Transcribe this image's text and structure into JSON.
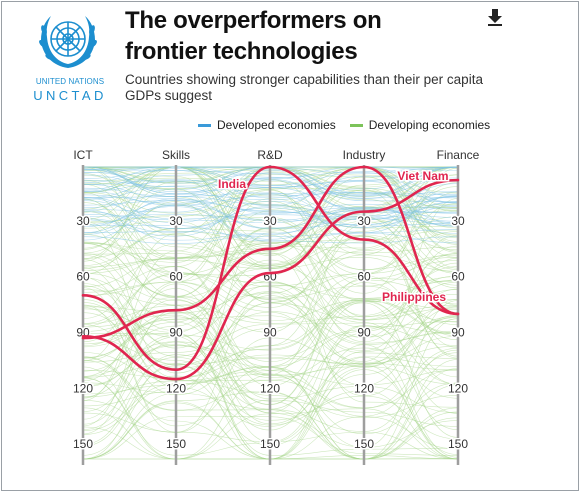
{
  "header": {
    "title": "The overperformers on frontier technologies",
    "subtitle": "Countries showing stronger capabilities than their per capita GDPs suggest"
  },
  "logo": {
    "line1": "UNITED NATIONS",
    "line2": "UNCTAD",
    "icon": "un-emblem-icon"
  },
  "toolbar": {
    "download_icon": "download-icon"
  },
  "colors": {
    "developed": "#7ec3e6",
    "developing": "#a6d68a",
    "highlight": "#e0264f",
    "axis": "#9e9e9e",
    "brand": "#1c8ecf"
  },
  "legend": {
    "items": [
      {
        "label": "Developed economies",
        "color": "#3a9ad9"
      },
      {
        "label": "Developing economies",
        "color": "#7cc35a"
      }
    ]
  },
  "chart_data": {
    "type": "parallel-coordinates",
    "title": "The overperformers on frontier technologies",
    "axes": [
      "ICT",
      "Skills",
      "R&D",
      "Industry",
      "Finance"
    ],
    "scale": {
      "min": 1,
      "max": 158,
      "inverted": true
    },
    "ticks": [
      30,
      60,
      90,
      120,
      150
    ],
    "grid": false,
    "legend_position": "top",
    "series": [
      {
        "name": "India",
        "values": [
          70,
          110,
          1,
          40,
          80
        ]
      },
      {
        "name": "Viet Nam",
        "values": [
          92,
          115,
          58,
          25,
          8
        ]
      },
      {
        "name": "Philippines",
        "values": [
          93,
          78,
          45,
          1,
          80
        ]
      }
    ]
  }
}
